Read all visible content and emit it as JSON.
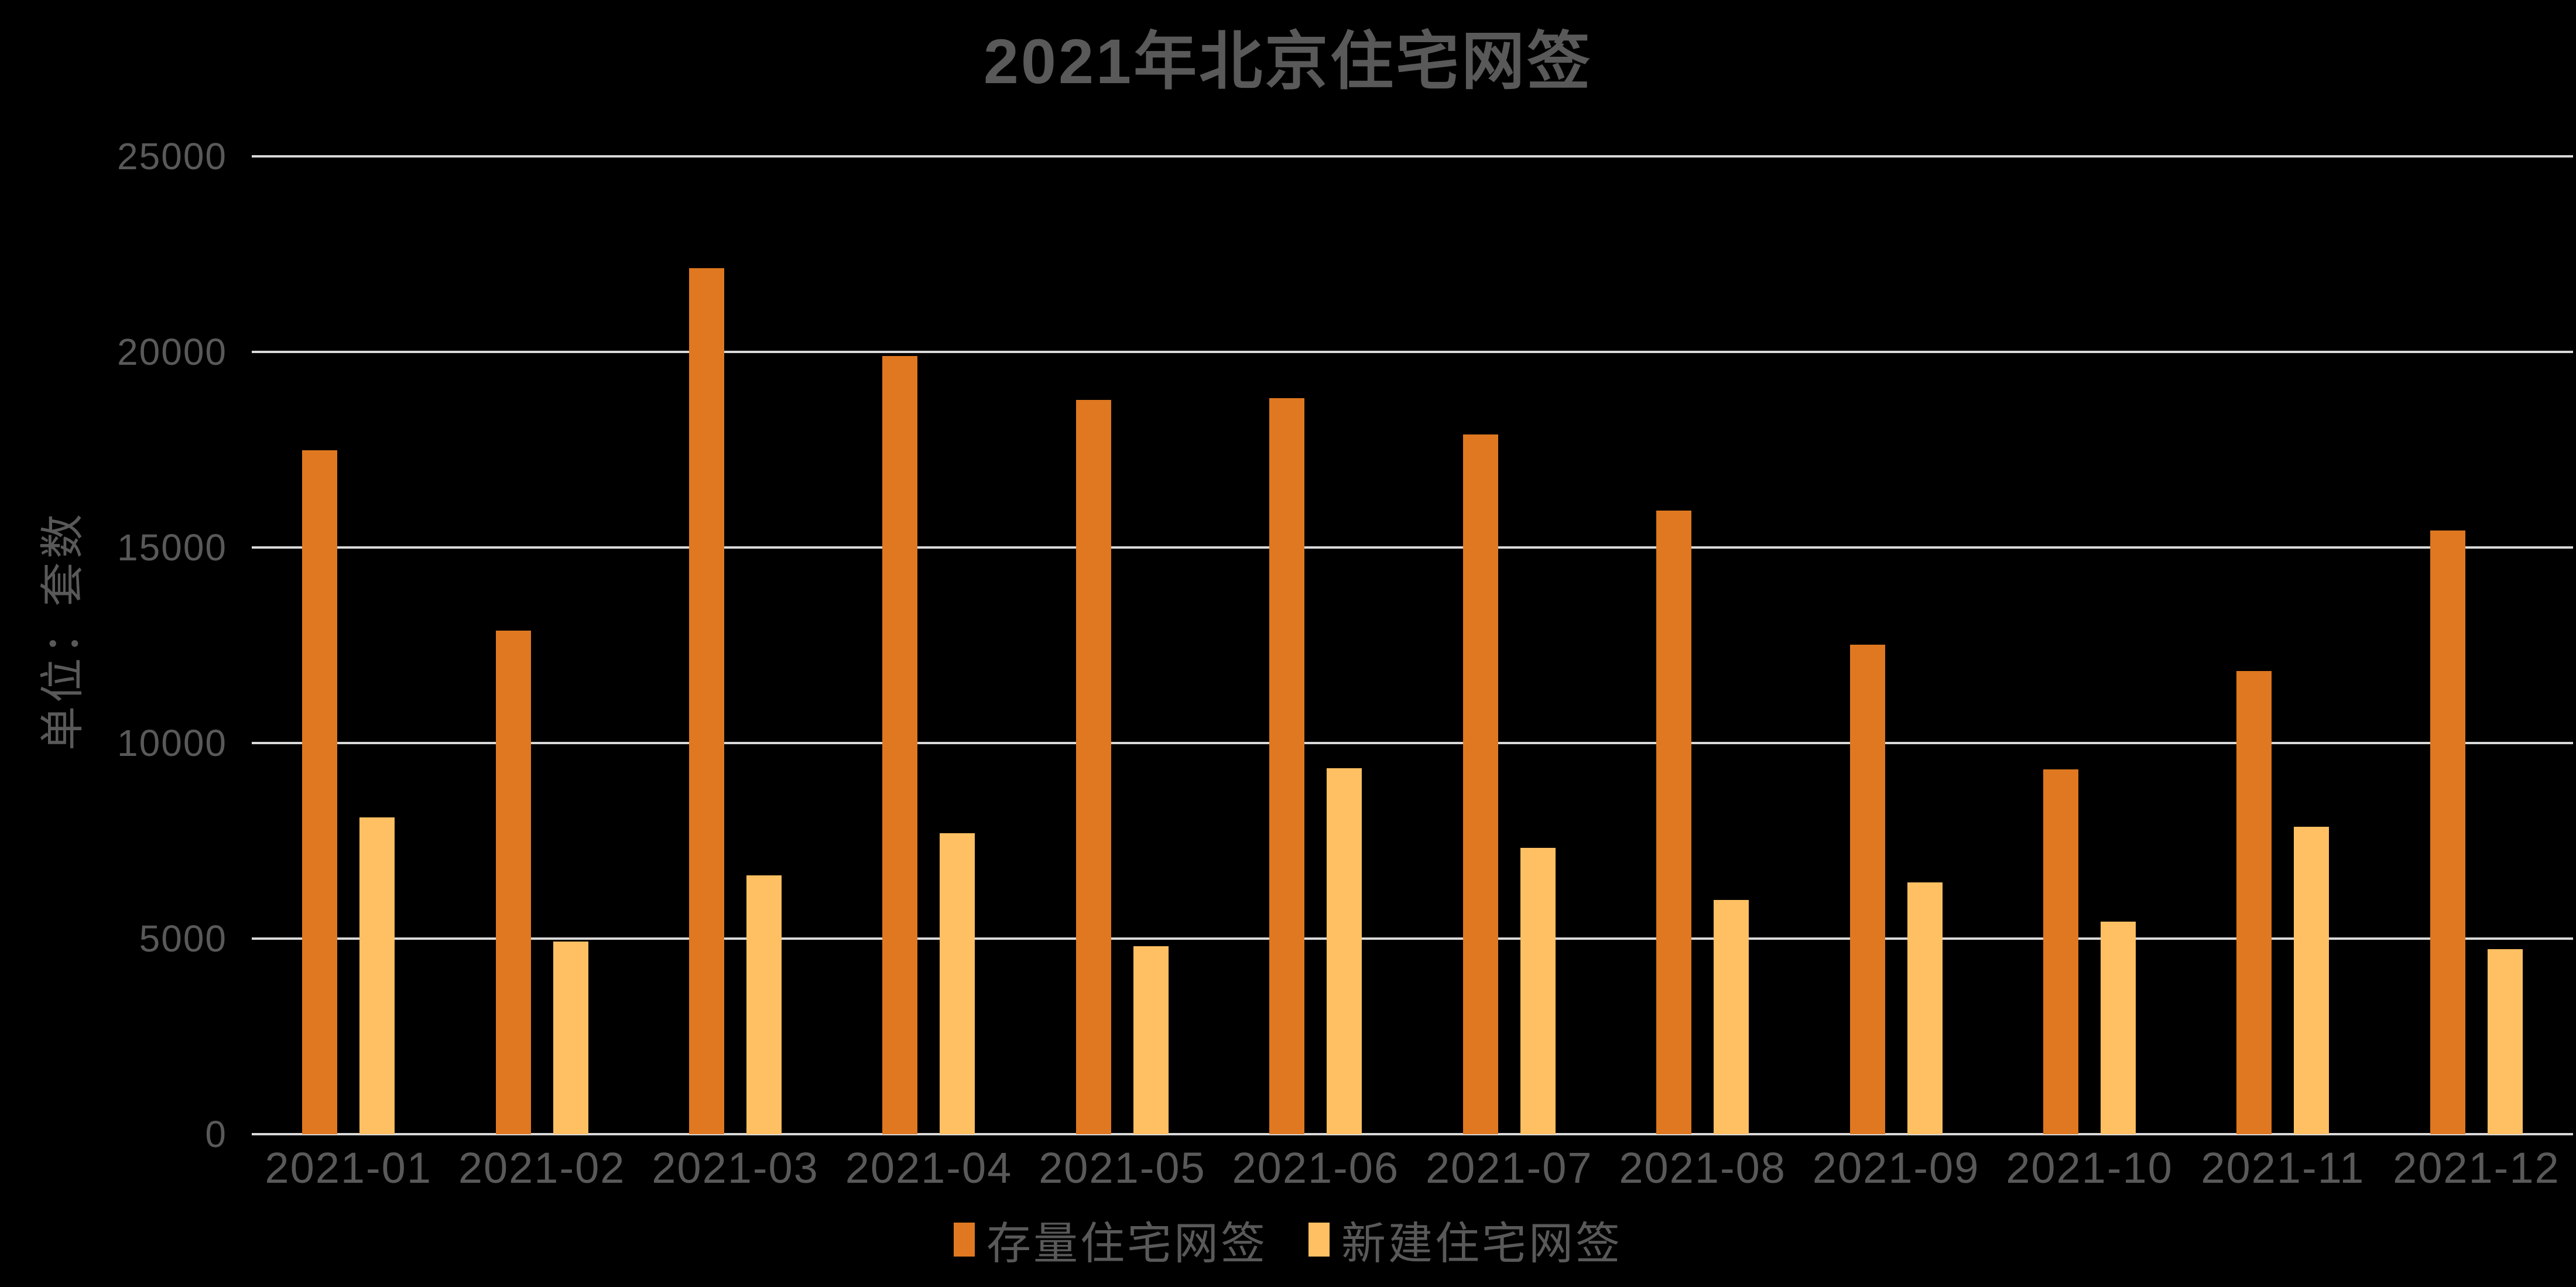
{
  "header": {
    "title": "2021年北京住宅网签"
  },
  "colors": {
    "background": "#000000",
    "gridline": "#D9D9D9",
    "text": "#595959",
    "existing_housing_bar": "#DF7820",
    "new_housing_bar": "#FFC063"
  },
  "chart_data": {
    "type": "bar",
    "title": "2021年北京住宅网签",
    "xlabel": "",
    "ylabel": "单位：套数",
    "categories": [
      "2021-01",
      "2021-02",
      "2021-03",
      "2021-04",
      "2021-05",
      "2021-06",
      "2021-07",
      "2021-08",
      "2021-09",
      "2021-10",
      "2021-11",
      "2021-12"
    ],
    "series": [
      {
        "name": "存量住宅网签",
        "color": "#DF7820",
        "values": [
          17480,
          12870,
          22140,
          19890,
          18770,
          18820,
          17890,
          15940,
          12510,
          9320,
          11840,
          15430
        ]
      },
      {
        "name": "新建住宅网签",
        "color": "#FFC063",
        "values": [
          8100,
          4920,
          6620,
          7700,
          4800,
          9360,
          7320,
          5990,
          6440,
          5430,
          7860,
          4730
        ]
      }
    ],
    "ylim": [
      0,
      25000
    ],
    "yticks": [
      0,
      5000,
      10000,
      15000,
      20000,
      25000
    ],
    "grid": true,
    "legend_position": "bottom"
  }
}
